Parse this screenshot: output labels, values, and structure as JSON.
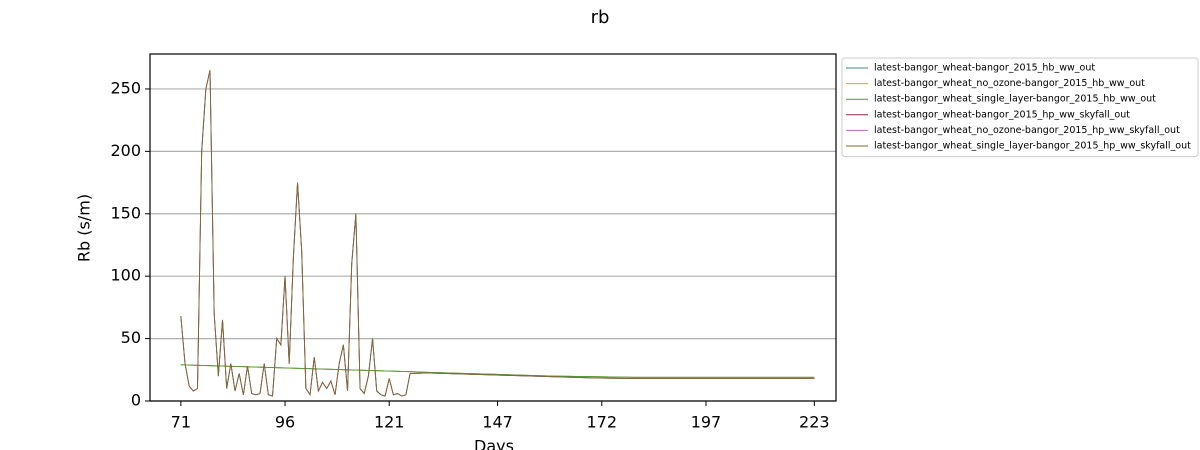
{
  "chart_data": {
    "type": "line",
    "title": "rb",
    "xlabel": "Days",
    "ylabel": "Rb (s/m)",
    "x": [
      71,
      72,
      73,
      74,
      75,
      76,
      77,
      78,
      79,
      80,
      81,
      82,
      83,
      84,
      85,
      86,
      87,
      88,
      89,
      90,
      91,
      92,
      93,
      94,
      95,
      96,
      97,
      98,
      99,
      100,
      101,
      102,
      103,
      104,
      105,
      106,
      107,
      108,
      109,
      110,
      111,
      112,
      113,
      114,
      115,
      116,
      117,
      118,
      119,
      120,
      121,
      122,
      123,
      124,
      125,
      126,
      130,
      140,
      150,
      160,
      170,
      180,
      190,
      200,
      210,
      220,
      223
    ],
    "series": [
      {
        "name": "latest-bangor_wheat-bangor_2015_hb_ww_out",
        "color": "#4a8a9a",
        "values": [
          29,
          28.9,
          28.8,
          28.7,
          28.6,
          28.5,
          28.4,
          28.3,
          28.2,
          28.1,
          28,
          27.9,
          27.8,
          27.7,
          27.6,
          27.5,
          27.4,
          27.3,
          27.2,
          27.1,
          27,
          26.9,
          26.8,
          26.7,
          26.6,
          26.5,
          26.4,
          26.3,
          26.2,
          26.1,
          26,
          25.9,
          25.8,
          25.7,
          25.6,
          25.5,
          25.4,
          25.3,
          25.2,
          25.1,
          25,
          24.9,
          24.8,
          24.7,
          24.6,
          24.5,
          24.4,
          24.3,
          24.2,
          24.1,
          24,
          23.9,
          23.8,
          23.7,
          23.6,
          23.5,
          23,
          22,
          21,
          20,
          19.5,
          19,
          19,
          19,
          19,
          19,
          19
        ]
      },
      {
        "name": "latest-bangor_wheat_no_ozone-bangor_2015_hb_ww_out",
        "color": "#d0a040",
        "values": [
          29,
          28.9,
          28.8,
          28.7,
          28.6,
          28.5,
          28.4,
          28.3,
          28.2,
          28.1,
          28,
          27.9,
          27.8,
          27.7,
          27.6,
          27.5,
          27.4,
          27.3,
          27.2,
          27.1,
          27,
          26.9,
          26.8,
          26.7,
          26.6,
          26.5,
          26.4,
          26.3,
          26.2,
          26.1,
          26,
          25.9,
          25.8,
          25.7,
          25.6,
          25.5,
          25.4,
          25.3,
          25.2,
          25.1,
          25,
          24.9,
          24.8,
          24.7,
          24.6,
          24.5,
          24.4,
          24.3,
          24.2,
          24.1,
          24,
          23.9,
          23.8,
          23.7,
          23.6,
          23.5,
          23,
          22,
          21,
          20,
          19.5,
          19,
          19,
          19,
          19,
          19,
          19
        ]
      },
      {
        "name": "latest-bangor_wheat_single_layer-bangor_2015_hb_ww_out",
        "color": "#4c9a30",
        "values": [
          29,
          28.9,
          28.8,
          28.7,
          28.6,
          28.5,
          28.4,
          28.3,
          28.2,
          28.1,
          28,
          27.9,
          27.8,
          27.7,
          27.6,
          27.5,
          27.4,
          27.3,
          27.2,
          27.1,
          27,
          26.9,
          26.8,
          26.7,
          26.6,
          26.5,
          26.4,
          26.3,
          26.2,
          26.1,
          26,
          25.9,
          25.8,
          25.7,
          25.6,
          25.5,
          25.4,
          25.3,
          25.2,
          25.1,
          25,
          24.9,
          24.8,
          24.7,
          24.6,
          24.5,
          24.4,
          24.3,
          24.2,
          24.1,
          24,
          23.9,
          23.8,
          23.7,
          23.6,
          23.5,
          23,
          22,
          21,
          20,
          19.5,
          19,
          19,
          19,
          19,
          19,
          19
        ]
      },
      {
        "name": "latest-bangor_wheat-bangor_2015_hp_ww_skyfall_out",
        "color": "#8c2a4a",
        "values": [
          68,
          30,
          12,
          8,
          10,
          200,
          250,
          265,
          70,
          20,
          65,
          10,
          30,
          8,
          22,
          5,
          28,
          6,
          5,
          6,
          30,
          5,
          4,
          50,
          45,
          100,
          30,
          115,
          175,
          120,
          10,
          5,
          35,
          8,
          15,
          10,
          16,
          5,
          30,
          45,
          8,
          110,
          150,
          10,
          6,
          20,
          50,
          8,
          5,
          4,
          18,
          5,
          6,
          4,
          5,
          22,
          22.5,
          21.5,
          20.5,
          19.5,
          18.5,
          18,
          18,
          18,
          18,
          18,
          18
        ]
      },
      {
        "name": "latest-bangor_wheat_no_ozone-bangor_2015_hp_ww_skyfall_out",
        "color": "#b070b8",
        "values": [
          68,
          30,
          12,
          8,
          10,
          200,
          250,
          265,
          70,
          20,
          65,
          10,
          30,
          8,
          22,
          5,
          28,
          6,
          5,
          6,
          30,
          5,
          4,
          50,
          45,
          100,
          30,
          115,
          175,
          120,
          10,
          5,
          35,
          8,
          15,
          10,
          16,
          5,
          30,
          45,
          8,
          110,
          150,
          10,
          6,
          20,
          50,
          8,
          5,
          4,
          18,
          5,
          6,
          4,
          5,
          22,
          22.5,
          21.5,
          20.5,
          19.5,
          18.5,
          18,
          18,
          18,
          18,
          18,
          18
        ]
      },
      {
        "name": "latest-bangor_wheat_single_layer-bangor_2015_hp_ww_skyfall_out",
        "color": "#7a6a30",
        "values": [
          68,
          30,
          12,
          8,
          10,
          200,
          250,
          265,
          70,
          20,
          65,
          10,
          30,
          8,
          22,
          5,
          28,
          6,
          5,
          6,
          30,
          5,
          4,
          50,
          45,
          100,
          30,
          115,
          175,
          120,
          10,
          5,
          35,
          8,
          15,
          10,
          16,
          5,
          30,
          45,
          8,
          110,
          150,
          10,
          6,
          20,
          50,
          8,
          5,
          4,
          18,
          5,
          6,
          4,
          5,
          22,
          22.5,
          21.5,
          20.5,
          19.5,
          18.5,
          18,
          18,
          18,
          18,
          18,
          18
        ]
      }
    ],
    "xlim": [
      63.6,
      228.2
    ],
    "ylim": [
      0,
      278
    ],
    "xticks": [
      71,
      96,
      121,
      147,
      172,
      197,
      223
    ],
    "yticks": [
      0,
      50,
      100,
      150,
      200,
      250
    ],
    "grid": "y",
    "legend": "outside-upper-right"
  }
}
